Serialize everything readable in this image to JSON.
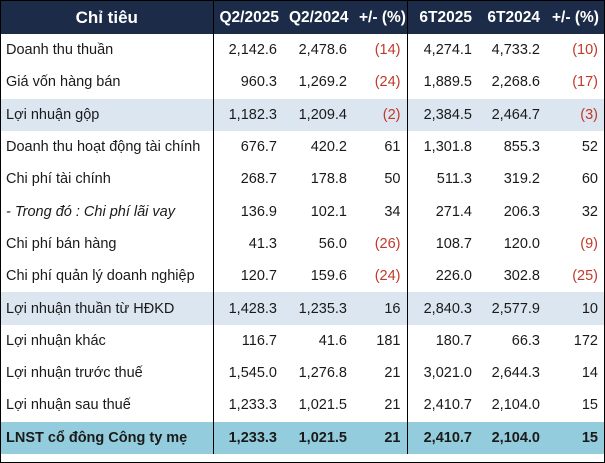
{
  "table": {
    "headers": [
      "Chỉ tiêu",
      "Q2/2025",
      "Q2/2024",
      "+/- (%)",
      "6T2025",
      "6T2024",
      "+/- (%)"
    ],
    "rows": [
      {
        "label": "Doanh thu thuần",
        "q2_2025": "2,142.6",
        "q2_2024": "2,478.6",
        "q_chg": "(14)",
        "h1_2025": "4,274.1",
        "h1_2024": "4,733.2",
        "h_chg": "(10)",
        "style": "normal"
      },
      {
        "label": "Giá vốn hàng bán",
        "q2_2025": "960.3",
        "q2_2024": "1,269.2",
        "q_chg": "(24)",
        "h1_2025": "1,889.5",
        "h1_2024": "2,268.6",
        "h_chg": "(17)",
        "style": "normal"
      },
      {
        "label": "Lợi nhuận gộp",
        "q2_2025": "1,182.3",
        "q2_2024": "1,209.4",
        "q_chg": "(2)",
        "h1_2025": "2,384.5",
        "h1_2024": "2,464.7",
        "h_chg": "(3)",
        "style": "highlight"
      },
      {
        "label": "Doanh thu hoạt động tài chính",
        "q2_2025": "676.7",
        "q2_2024": "420.2",
        "q_chg": "61",
        "h1_2025": "1,301.8",
        "h1_2024": "855.3",
        "h_chg": "52",
        "style": "normal"
      },
      {
        "label": "Chi phí tài chính",
        "q2_2025": "268.7",
        "q2_2024": "178.8",
        "q_chg": "50",
        "h1_2025": "511.3",
        "h1_2024": "319.2",
        "h_chg": "60",
        "style": "normal"
      },
      {
        "label": "- Trong đó : Chi phí lãi vay",
        "q2_2025": "136.9",
        "q2_2024": "102.1",
        "q_chg": "34",
        "h1_2025": "271.4",
        "h1_2024": "206.3",
        "h_chg": "32",
        "style": "italic"
      },
      {
        "label": "Chi phí bán hàng",
        "q2_2025": "41.3",
        "q2_2024": "56.0",
        "q_chg": "(26)",
        "h1_2025": "108.7",
        "h1_2024": "120.0",
        "h_chg": "(9)",
        "style": "normal"
      },
      {
        "label": "Chi phí quản lý doanh nghiệp",
        "q2_2025": "120.7",
        "q2_2024": "159.6",
        "q_chg": "(24)",
        "h1_2025": "226.0",
        "h1_2024": "302.8",
        "h_chg": "(25)",
        "style": "normal"
      },
      {
        "label": "Lợi nhuận thuần từ HĐKD",
        "q2_2025": "1,428.3",
        "q2_2024": "1,235.3",
        "q_chg": "16",
        "h1_2025": "2,840.3",
        "h1_2024": "2,577.9",
        "h_chg": "10",
        "style": "highlight"
      },
      {
        "label": "Lợi nhuận khác",
        "q2_2025": "116.7",
        "q2_2024": "41.6",
        "q_chg": "181",
        "h1_2025": "180.7",
        "h1_2024": "66.3",
        "h_chg": "172",
        "style": "normal"
      },
      {
        "label": "Lợi nhuận trước thuế",
        "q2_2025": "1,545.0",
        "q2_2024": "1,276.8",
        "q_chg": "21",
        "h1_2025": "3,021.0",
        "h1_2024": "2,644.3",
        "h_chg": "14",
        "style": "normal"
      },
      {
        "label": "Lợi nhuận sau thuế",
        "q2_2025": "1,233.3",
        "q2_2024": "1,021.5",
        "q_chg": "21",
        "h1_2025": "2,410.7",
        "h1_2024": "2,104.0",
        "h_chg": "15",
        "style": "normal"
      },
      {
        "label": "LNST cổ đông Công ty mẹ",
        "q2_2025": "1,233.3",
        "q2_2024": "1,021.5",
        "q_chg": "21",
        "h1_2025": "2,410.7",
        "h1_2024": "2,104.0",
        "h_chg": "15",
        "style": "total"
      }
    ]
  },
  "colors": {
    "header_bg": "#1c2b47",
    "header_text": "#ffffff",
    "highlight_row": "#dce6f1",
    "total_row": "#93cddd",
    "negative_text": "#c0392b"
  }
}
